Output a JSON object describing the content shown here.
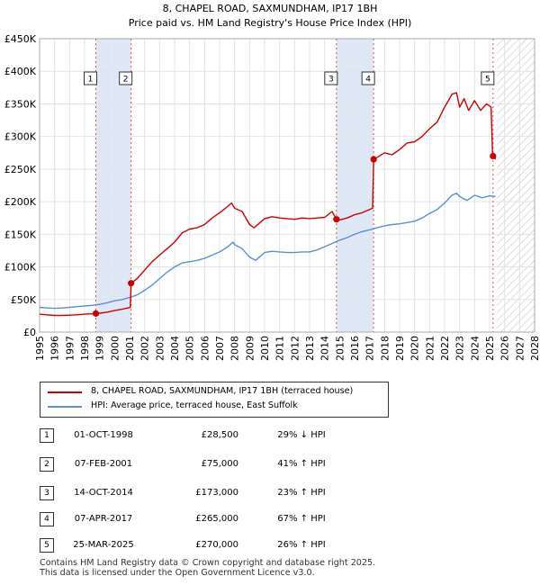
{
  "chart_data": {
    "type": "line",
    "title": "8, CHAPEL ROAD, SAXMUNDHAM, IP17 1BH",
    "subtitle": "Price paid vs. HM Land Registry's House Price Index (HPI)",
    "xlim": [
      1995,
      2028
    ],
    "ylim": [
      0,
      450000
    ],
    "x_ticks": [
      "1995",
      "1996",
      "1997",
      "1998",
      "1999",
      "2000",
      "2001",
      "2002",
      "2003",
      "2004",
      "2005",
      "2006",
      "2007",
      "2008",
      "2009",
      "2010",
      "2011",
      "2012",
      "2013",
      "2014",
      "2015",
      "2016",
      "2017",
      "2018",
      "2019",
      "2020",
      "2021",
      "2022",
      "2023",
      "2024",
      "2025",
      "2026",
      "2027",
      "2028"
    ],
    "y_ticks": [
      {
        "value": 0,
        "label": "£0"
      },
      {
        "value": 50000,
        "label": "£50K"
      },
      {
        "value": 100000,
        "label": "£100K"
      },
      {
        "value": 150000,
        "label": "£150K"
      },
      {
        "value": 200000,
        "label": "£200K"
      },
      {
        "value": 250000,
        "label": "£250K"
      },
      {
        "value": 300000,
        "label": "£300K"
      },
      {
        "value": 350000,
        "label": "£350K"
      },
      {
        "value": 400000,
        "label": "£400K"
      },
      {
        "value": 450000,
        "label": "£450K"
      }
    ],
    "shaded_periods": [
      [
        1998.75,
        2001.1
      ],
      [
        2014.79,
        2017.27
      ]
    ],
    "future_hatch_start": 2025.5,
    "series": [
      {
        "name": "8, CHAPEL ROAD, SAXMUNDHAM, IP17 1BH (terraced house)",
        "color": "#cc0000",
        "points": [
          [
            1995,
            27500
          ],
          [
            1995.5,
            26500
          ],
          [
            1996,
            25500
          ],
          [
            1996.5,
            25500
          ],
          [
            1997,
            26000
          ],
          [
            1997.5,
            26500
          ],
          [
            1998,
            27500
          ],
          [
            1998.5,
            28000
          ],
          [
            1998.75,
            28500
          ],
          [
            1999,
            29000
          ],
          [
            1999.5,
            30500
          ],
          [
            2000,
            33000
          ],
          [
            2000.5,
            35000
          ],
          [
            2001.05,
            38000
          ],
          [
            2001.1,
            75000
          ],
          [
            2001.5,
            82000
          ],
          [
            2002,
            95000
          ],
          [
            2002.5,
            108000
          ],
          [
            2003,
            118000
          ],
          [
            2003.5,
            128000
          ],
          [
            2004,
            138000
          ],
          [
            2004.5,
            152000
          ],
          [
            2005,
            158000
          ],
          [
            2005.5,
            160000
          ],
          [
            2006,
            165000
          ],
          [
            2006.5,
            175000
          ],
          [
            2007,
            183000
          ],
          [
            2007.5,
            192000
          ],
          [
            2007.8,
            198000
          ],
          [
            2008,
            190000
          ],
          [
            2008.5,
            185000
          ],
          [
            2009,
            165000
          ],
          [
            2009.3,
            160000
          ],
          [
            2009.7,
            168000
          ],
          [
            2010,
            174000
          ],
          [
            2010.5,
            177000
          ],
          [
            2011,
            175000
          ],
          [
            2011.5,
            174000
          ],
          [
            2012,
            173000
          ],
          [
            2012.5,
            175000
          ],
          [
            2013,
            174000
          ],
          [
            2013.5,
            175000
          ],
          [
            2014,
            176000
          ],
          [
            2014.5,
            185000
          ],
          [
            2014.79,
            173000
          ],
          [
            2015,
            172000
          ],
          [
            2015.5,
            175000
          ],
          [
            2016,
            180000
          ],
          [
            2016.5,
            183000
          ],
          [
            2017.2,
            190000
          ],
          [
            2017.27,
            265000
          ],
          [
            2017.5,
            268000
          ],
          [
            2018,
            275000
          ],
          [
            2018.5,
            272000
          ],
          [
            2019,
            280000
          ],
          [
            2019.5,
            290000
          ],
          [
            2020,
            292000
          ],
          [
            2020.5,
            300000
          ],
          [
            2021,
            312000
          ],
          [
            2021.5,
            322000
          ],
          [
            2022,
            345000
          ],
          [
            2022.5,
            365000
          ],
          [
            2022.8,
            367000
          ],
          [
            2023,
            345000
          ],
          [
            2023.3,
            358000
          ],
          [
            2023.6,
            340000
          ],
          [
            2024,
            355000
          ],
          [
            2024.4,
            340000
          ],
          [
            2024.8,
            350000
          ],
          [
            2025.1,
            345000
          ],
          [
            2025.2,
            272000
          ],
          [
            2025.4,
            265000
          ]
        ]
      },
      {
        "name": "HPI: Average price, terraced house, East Suffolk",
        "color": "#5b8fd0",
        "points": [
          [
            1995,
            38000
          ],
          [
            1995.5,
            37000
          ],
          [
            1996,
            36500
          ],
          [
            1996.5,
            37000
          ],
          [
            1997,
            38000
          ],
          [
            1997.5,
            39000
          ],
          [
            1998,
            40000
          ],
          [
            1998.5,
            41000
          ],
          [
            1999,
            42500
          ],
          [
            1999.5,
            45000
          ],
          [
            2000,
            48000
          ],
          [
            2000.5,
            50000
          ],
          [
            2001,
            53000
          ],
          [
            2001.5,
            57000
          ],
          [
            2002,
            64000
          ],
          [
            2002.5,
            72000
          ],
          [
            2003,
            82000
          ],
          [
            2003.5,
            92000
          ],
          [
            2004,
            100000
          ],
          [
            2004.5,
            106000
          ],
          [
            2005,
            108000
          ],
          [
            2005.5,
            110000
          ],
          [
            2006,
            113000
          ],
          [
            2006.5,
            118000
          ],
          [
            2007,
            123000
          ],
          [
            2007.5,
            130000
          ],
          [
            2007.9,
            138000
          ],
          [
            2008,
            134000
          ],
          [
            2008.5,
            128000
          ],
          [
            2009,
            115000
          ],
          [
            2009.4,
            110000
          ],
          [
            2009.8,
            118000
          ],
          [
            2010,
            122000
          ],
          [
            2010.5,
            124000
          ],
          [
            2011,
            123000
          ],
          [
            2011.5,
            122000
          ],
          [
            2012,
            122000
          ],
          [
            2012.5,
            123000
          ],
          [
            2013,
            123000
          ],
          [
            2013.5,
            126000
          ],
          [
            2014,
            131000
          ],
          [
            2014.5,
            136000
          ],
          [
            2015,
            141000
          ],
          [
            2015.5,
            145000
          ],
          [
            2016,
            150000
          ],
          [
            2016.5,
            154000
          ],
          [
            2017,
            157000
          ],
          [
            2017.5,
            160000
          ],
          [
            2018,
            163000
          ],
          [
            2018.5,
            165000
          ],
          [
            2019,
            166000
          ],
          [
            2019.5,
            168000
          ],
          [
            2020,
            170000
          ],
          [
            2020.5,
            175000
          ],
          [
            2021,
            182000
          ],
          [
            2021.5,
            188000
          ],
          [
            2022,
            198000
          ],
          [
            2022.5,
            210000
          ],
          [
            2022.8,
            213000
          ],
          [
            2023,
            208000
          ],
          [
            2023.5,
            202000
          ],
          [
            2024,
            210000
          ],
          [
            2024.5,
            206000
          ],
          [
            2025,
            209000
          ],
          [
            2025.4,
            208000
          ]
        ]
      }
    ],
    "transactions": [
      {
        "num": "1",
        "x": 1998.75,
        "y": 28500,
        "date": "01-OCT-1998",
        "price": "£28,500",
        "hpi": "29% ↓ HPI"
      },
      {
        "num": "2",
        "x": 2001.1,
        "y": 75000,
        "date": "07-FEB-2001",
        "price": "£75,000",
        "hpi": "41% ↑ HPI"
      },
      {
        "num": "3",
        "x": 2014.79,
        "y": 173000,
        "date": "14-OCT-2014",
        "price": "£173,000",
        "hpi": "23% ↑ HPI"
      },
      {
        "num": "4",
        "x": 2017.27,
        "y": 265000,
        "date": "07-APR-2017",
        "price": "£265,000",
        "hpi": "67% ↑ HPI"
      },
      {
        "num": "5",
        "x": 2025.23,
        "y": 270000,
        "date": "25-MAR-2025",
        "price": "£270,000",
        "hpi": "26% ↑ HPI"
      }
    ]
  },
  "legend": {
    "property": "8, CHAPEL ROAD, SAXMUNDHAM, IP17 1BH (terraced house)",
    "hpi": "HPI: Average price, terraced house, East Suffolk",
    "property_color": "#cc0000",
    "hpi_color": "#5b8fd0"
  },
  "footer": {
    "line1": "Contains HM Land Registry data © Crown copyright and database right 2025.",
    "line2": "This data is licensed under the Open Government Licence v3.0."
  }
}
